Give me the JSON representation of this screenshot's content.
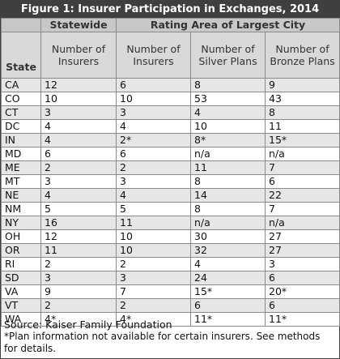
{
  "title": "Figure 1: Insurer Participation in Exchanges, 2014",
  "group_headers": {
    "statewide": "Statewide",
    "rating_area": "Rating Area of Largest City"
  },
  "column_headers": {
    "state": "State",
    "statewide_insurers": "Number of Insurers",
    "rating_insurers": "Number of Insurers",
    "silver_plans": "Number of Silver Plans",
    "bronze_plans": "Number of Bronze Plans"
  },
  "rows": [
    {
      "state": "CA",
      "statewide": "12",
      "insurers": "6",
      "silver": "8",
      "bronze": "9"
    },
    {
      "state": "CO",
      "statewide": "10",
      "insurers": "10",
      "silver": "53",
      "bronze": "43"
    },
    {
      "state": "CT",
      "statewide": "3",
      "insurers": "3",
      "silver": "4",
      "bronze": "8"
    },
    {
      "state": "DC",
      "statewide": "4",
      "insurers": "4",
      "silver": "10",
      "bronze": "11"
    },
    {
      "state": "IN",
      "statewide": "4",
      "insurers": "2*",
      "silver": "8*",
      "bronze": "15*"
    },
    {
      "state": "MD",
      "statewide": "6",
      "insurers": "6",
      "silver": "n/a",
      "bronze": "n/a"
    },
    {
      "state": "ME",
      "statewide": "2",
      "insurers": "2",
      "silver": "11",
      "bronze": "7"
    },
    {
      "state": "MT",
      "statewide": "3",
      "insurers": "3",
      "silver": "8",
      "bronze": "6"
    },
    {
      "state": "NE",
      "statewide": "4",
      "insurers": "4",
      "silver": "14",
      "bronze": "22"
    },
    {
      "state": "NM",
      "statewide": "5",
      "insurers": "5",
      "silver": "8",
      "bronze": "7"
    },
    {
      "state": "NY",
      "statewide": "16",
      "insurers": "11",
      "silver": "n/a",
      "bronze": "n/a"
    },
    {
      "state": "OH",
      "statewide": "12",
      "insurers": "10",
      "silver": "30",
      "bronze": "27"
    },
    {
      "state": "OR",
      "statewide": "11",
      "insurers": "10",
      "silver": "32",
      "bronze": "27"
    },
    {
      "state": "RI",
      "statewide": "2",
      "insurers": "2",
      "silver": "4",
      "bronze": "3"
    },
    {
      "state": "SD",
      "statewide": "3",
      "insurers": "3",
      "silver": "24",
      "bronze": "6"
    },
    {
      "state": "VA",
      "statewide": "9",
      "insurers": "7",
      "silver": "15*",
      "bronze": "20*"
    },
    {
      "state": "VT",
      "statewide": "2",
      "insurers": "2",
      "silver": "6",
      "bronze": "6"
    },
    {
      "state": "WA",
      "statewide": "4*",
      "insurers": "4*",
      "silver": "11*",
      "bronze": "11*"
    }
  ],
  "footer": {
    "source": "Source: Kaiser Family Foundation",
    "note": "*Plan information not available for certain insurers. See methods for details."
  },
  "colors": {
    "title_bar": "#3f3f3f",
    "header_bg": "#c8c8c8",
    "subheader_bg": "#d9d9d9",
    "stripe": "#e6e6e6"
  }
}
